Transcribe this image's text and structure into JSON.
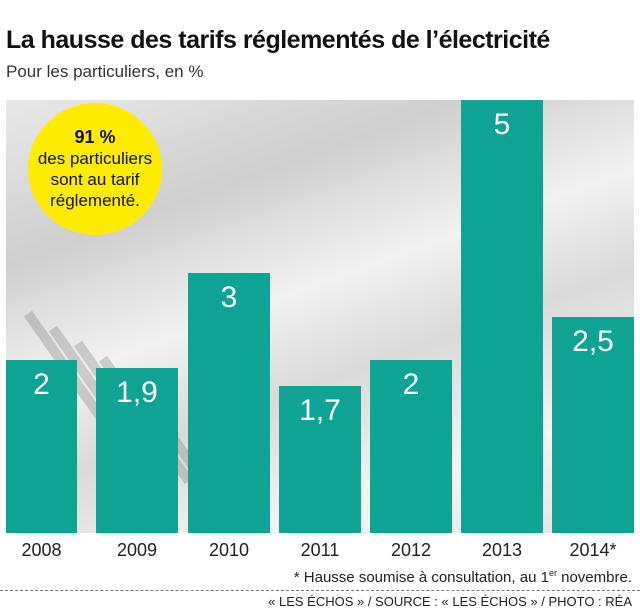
{
  "title": "La hausse des tarifs réglementés de l’électricité",
  "subtitle": "Pour les particuliers, en %",
  "callout": {
    "strong": "91 %",
    "text_lines": [
      "des particuliers",
      "sont au tarif",
      "réglementé."
    ]
  },
  "chart_data": {
    "type": "bar",
    "categories": [
      "2008",
      "2009",
      "2010",
      "2011",
      "2012",
      "2013",
      "2014*"
    ],
    "values": [
      2,
      1.9,
      3,
      1.7,
      2,
      5,
      2.5
    ],
    "value_labels": [
      "2",
      "1,9",
      "3",
      "1,7",
      "2",
      "5",
      "2,5"
    ],
    "ylim": [
      0,
      5
    ],
    "grid": false,
    "bar_color": "#0fa393"
  },
  "footnote": {
    "prefix": "* Hausse soumise à consultation, au 1",
    "sup": "er",
    "suffix": " novembre."
  },
  "credit": "« LES ÉCHOS » / SOURCE : « LES ÉCHOS » / PHOTO : RÉA"
}
